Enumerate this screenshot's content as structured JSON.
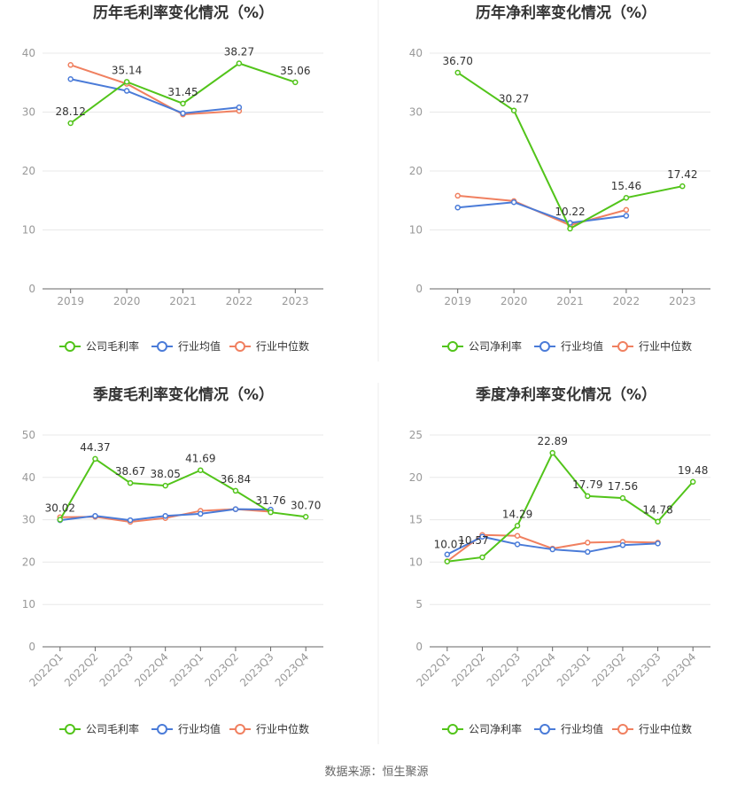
{
  "colors": {
    "company": "#52c41a",
    "avg": "#4a7bd8",
    "median": "#f08060"
  },
  "source": "数据来源：恒生聚源",
  "chart_data": [
    {
      "type": "line",
      "title": "历年毛利率变化情况（%）",
      "categories": [
        "2019",
        "2020",
        "2021",
        "2022",
        "2023"
      ],
      "ylim": [
        0,
        40
      ],
      "yticks": [
        0,
        10,
        20,
        30,
        40
      ],
      "series": [
        {
          "name": "公司毛利率",
          "values": [
            28.12,
            35.14,
            31.45,
            38.27,
            35.06
          ],
          "labels": [
            "28.12",
            "35.14",
            "31.45",
            "38.27",
            "35.06"
          ]
        },
        {
          "name": "行业均值",
          "values": [
            35.6,
            33.6,
            29.8,
            30.8,
            null
          ]
        },
        {
          "name": "行业中位数",
          "values": [
            38.0,
            34.8,
            29.6,
            30.2,
            null
          ]
        }
      ]
    },
    {
      "type": "line",
      "title": "历年净利率变化情况（%）",
      "categories": [
        "2019",
        "2020",
        "2021",
        "2022",
        "2023"
      ],
      "ylim": [
        0,
        40
      ],
      "yticks": [
        0,
        10,
        20,
        30,
        40
      ],
      "series": [
        {
          "name": "公司净利率",
          "values": [
            36.7,
            30.27,
            10.22,
            15.46,
            17.42
          ],
          "labels": [
            "36.70",
            "30.27",
            "10.22",
            "15.46",
            "17.42"
          ]
        },
        {
          "name": "行业均值",
          "values": [
            13.8,
            14.7,
            11.2,
            12.4,
            null
          ]
        },
        {
          "name": "行业中位数",
          "values": [
            15.8,
            14.9,
            10.8,
            13.4,
            null
          ]
        }
      ]
    },
    {
      "type": "line",
      "title": "季度毛利率变化情况（%）",
      "categories": [
        "2022Q1",
        "2022Q2",
        "2022Q3",
        "2022Q4",
        "2023Q1",
        "2023Q2",
        "2023Q3",
        "2023Q4"
      ],
      "ylim": [
        0,
        50
      ],
      "yticks": [
        0,
        10,
        20,
        30,
        40,
        50
      ],
      "series": [
        {
          "name": "公司毛利率",
          "values": [
            30.02,
            44.37,
            38.67,
            38.05,
            41.69,
            36.84,
            31.76,
            30.7
          ],
          "labels": [
            "30.02",
            "44.37",
            "38.67",
            "38.05",
            "41.69",
            "36.84",
            "31.76",
            "30.70"
          ]
        },
        {
          "name": "行业均值",
          "values": [
            29.9,
            30.9,
            29.9,
            30.9,
            31.4,
            32.5,
            32.4,
            null
          ]
        },
        {
          "name": "行业中位数",
          "values": [
            30.6,
            30.7,
            29.5,
            30.4,
            32.1,
            32.5,
            31.9,
            null
          ]
        }
      ]
    },
    {
      "type": "line",
      "title": "季度净利率变化情况（%）",
      "categories": [
        "2022Q1",
        "2022Q2",
        "2022Q3",
        "2022Q4",
        "2023Q1",
        "2023Q2",
        "2023Q3",
        "2023Q4"
      ],
      "ylim": [
        0,
        25
      ],
      "yticks": [
        0,
        5,
        10,
        15,
        20,
        25
      ],
      "series": [
        {
          "name": "公司净利率",
          "values": [
            10.07,
            10.57,
            14.29,
            22.89,
            17.79,
            17.56,
            14.78,
            19.48
          ],
          "labels": [
            "10.07",
            "10.57",
            "14.29",
            "22.89",
            "17.79",
            "17.56",
            "14.78",
            "19.48"
          ]
        },
        {
          "name": "行业均值",
          "values": [
            10.9,
            13.0,
            12.1,
            11.5,
            11.2,
            12.0,
            12.2,
            null
          ]
        },
        {
          "name": "行业中位数",
          "values": [
            10.1,
            13.2,
            13.1,
            11.6,
            12.3,
            12.4,
            12.3,
            null
          ]
        }
      ]
    }
  ]
}
